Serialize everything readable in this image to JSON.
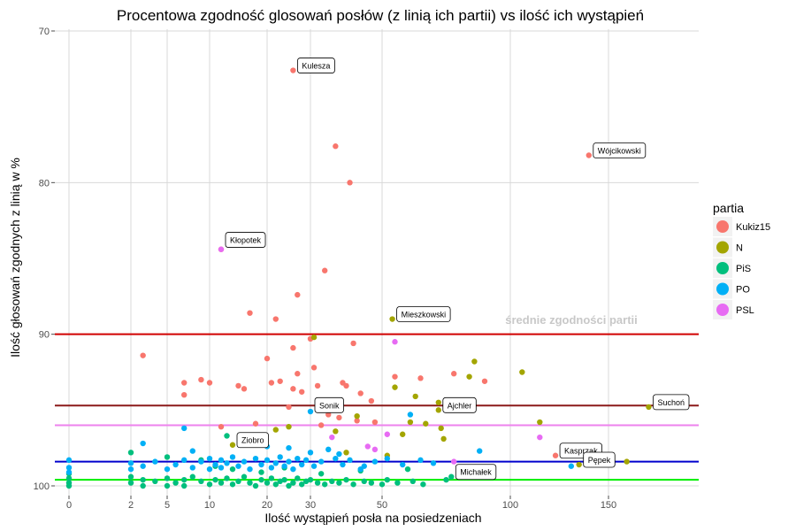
{
  "chart_data": {
    "type": "scatter",
    "title": "Procentowa zgodność glosowań posłów (z linią ich partii) vs ilość ich wystąpień",
    "xlabel": "Ilość wystąpień posła na posiedzeniach",
    "ylabel": "Ilość głosowań zgodnych z linią w %",
    "x_ticks": [
      0,
      2,
      5,
      10,
      20,
      30,
      50,
      100,
      150
    ],
    "y_ticks": [
      70,
      80,
      90,
      100
    ],
    "ylim": [
      69,
      101
    ],
    "y_reversed": true,
    "grid": true,
    "legend": {
      "title": "partia",
      "position": "right",
      "entries": [
        "Kukiz15",
        "N",
        "PiS",
        "PO",
        "PSL"
      ]
    },
    "colors": {
      "Kukiz15": "#F8766D",
      "N": "#A3A500",
      "PiS": "#00BF7D",
      "PO": "#00B0F6",
      "PSL": "#E76BF3"
    },
    "annotation_text": "średnie zgodności partii",
    "hlines": [
      {
        "value": 90.0,
        "color": "#D00000"
      },
      {
        "value": 94.7,
        "color": "#8B1A1A"
      },
      {
        "value": 96.0,
        "color": "#EE82EE"
      },
      {
        "value": 98.4,
        "color": "#0000CD"
      },
      {
        "value": 99.6,
        "color": "#00EE00"
      }
    ],
    "labels": [
      {
        "text": "Kulesza",
        "x": 26,
        "y": 72.6
      },
      {
        "text": "Wójcikowski",
        "x": 140,
        "y": 78.2
      },
      {
        "text": "Kłopotek",
        "x": 12,
        "y": 84.1
      },
      {
        "text": "Mieszkowski",
        "x": 54,
        "y": 89.0
      },
      {
        "text": "Sonik",
        "x": 30,
        "y": 95.0
      },
      {
        "text": "Ajchler",
        "x": 72,
        "y": 95.0
      },
      {
        "text": "Suchoń",
        "x": 172,
        "y": 94.8
      },
      {
        "text": "Ziobro",
        "x": 14,
        "y": 97.3
      },
      {
        "text": "Kasprzak",
        "x": 123,
        "y": 98.0
      },
      {
        "text": "Pępek",
        "x": 135,
        "y": 98.6
      },
      {
        "text": "Michałek",
        "x": 77,
        "y": 99.4
      }
    ],
    "series": [
      {
        "name": "Kukiz15",
        "points": [
          [
            26,
            72.6
          ],
          [
            37,
            77.6
          ],
          [
            41,
            80.0
          ],
          [
            34,
            85.8
          ],
          [
            27,
            87.4
          ],
          [
            12,
            84.4
          ],
          [
            17,
            88.6
          ],
          [
            22,
            89.0
          ],
          [
            30,
            90.3
          ],
          [
            42,
            90.6
          ],
          [
            3,
            91.4
          ],
          [
            20,
            91.6
          ],
          [
            26,
            90.9
          ],
          [
            27,
            92.6
          ],
          [
            31,
            92.2
          ],
          [
            7,
            93.2
          ],
          [
            9,
            93.0
          ],
          [
            10,
            93.2
          ],
          [
            15,
            93.4
          ],
          [
            16,
            93.6
          ],
          [
            21,
            93.2
          ],
          [
            23,
            93.1
          ],
          [
            26,
            93.6
          ],
          [
            28,
            93.8
          ],
          [
            32,
            93.4
          ],
          [
            39,
            93.2
          ],
          [
            40,
            93.4
          ],
          [
            44,
            93.9
          ],
          [
            47,
            94.4
          ],
          [
            55,
            92.8
          ],
          [
            65,
            92.9
          ],
          [
            78,
            92.6
          ],
          [
            90,
            93.1
          ],
          [
            7,
            94.0
          ],
          [
            25,
            94.8
          ],
          [
            35,
            95.3
          ],
          [
            43,
            95.7
          ],
          [
            12,
            96.1
          ],
          [
            18,
            95.9
          ],
          [
            33,
            96.0
          ],
          [
            38,
            95.5
          ],
          [
            48,
            95.8
          ],
          [
            123,
            98.0
          ],
          [
            140,
            78.2
          ]
        ]
      },
      {
        "name": "N",
        "points": [
          [
            31,
            90.2
          ],
          [
            54,
            89.0
          ],
          [
            55,
            93.5
          ],
          [
            63,
            94.1
          ],
          [
            72,
            94.5
          ],
          [
            86,
            91.8
          ],
          [
            84,
            92.8
          ],
          [
            106,
            92.5
          ],
          [
            61,
            95.8
          ],
          [
            73,
            96.2
          ],
          [
            74,
            96.9
          ],
          [
            37,
            96.4
          ],
          [
            43,
            95.4
          ],
          [
            58,
            96.6
          ],
          [
            67,
            95.9
          ],
          [
            14,
            97.3
          ],
          [
            22,
            96.3
          ],
          [
            25,
            96.1
          ],
          [
            72,
            95.0
          ],
          [
            115,
            95.8
          ],
          [
            135,
            98.6
          ],
          [
            160,
            98.4
          ],
          [
            172,
            94.8
          ],
          [
            52,
            98.0
          ],
          [
            40,
            97.8
          ]
        ]
      },
      {
        "name": "PiS",
        "points": [
          [
            0,
            99.5
          ],
          [
            0,
            99.8
          ],
          [
            0,
            100.0
          ],
          [
            0,
            99.2
          ],
          [
            2,
            99.4
          ],
          [
            2,
            99.8
          ],
          [
            3,
            99.6
          ],
          [
            3,
            100.0
          ],
          [
            4,
            99.7
          ],
          [
            5,
            99.5
          ],
          [
            5,
            100.0
          ],
          [
            6,
            99.8
          ],
          [
            7,
            99.6
          ],
          [
            7,
            100.0
          ],
          [
            8,
            99.4
          ],
          [
            9,
            99.7
          ],
          [
            10,
            99.9
          ],
          [
            11,
            99.6
          ],
          [
            12,
            99.8
          ],
          [
            13,
            99.5
          ],
          [
            14,
            99.9
          ],
          [
            15,
            99.7
          ],
          [
            16,
            99.4
          ],
          [
            17,
            99.8
          ],
          [
            18,
            100.0
          ],
          [
            19,
            99.6
          ],
          [
            20,
            99.8
          ],
          [
            21,
            99.5
          ],
          [
            22,
            99.9
          ],
          [
            23,
            99.7
          ],
          [
            24,
            99.6
          ],
          [
            25,
            100.0
          ],
          [
            26,
            99.8
          ],
          [
            27,
            99.5
          ],
          [
            28,
            99.9
          ],
          [
            29,
            99.7
          ],
          [
            30,
            99.6
          ],
          [
            32,
            99.8
          ],
          [
            34,
            99.9
          ],
          [
            36,
            99.7
          ],
          [
            38,
            99.8
          ],
          [
            40,
            99.6
          ],
          [
            42,
            99.9
          ],
          [
            45,
            99.7
          ],
          [
            47,
            99.8
          ],
          [
            50,
            99.9
          ],
          [
            52,
            99.6
          ],
          [
            56,
            99.8
          ],
          [
            62,
            99.7
          ],
          [
            66,
            99.9
          ],
          [
            75,
            99.6
          ],
          [
            77,
            99.4
          ],
          [
            2,
            97.8
          ],
          [
            5,
            98.1
          ],
          [
            9,
            98.3
          ],
          [
            13,
            96.7
          ],
          [
            16,
            97.0
          ],
          [
            11,
            98.7
          ],
          [
            14,
            98.9
          ],
          [
            19,
            99.1
          ],
          [
            24,
            98.8
          ],
          [
            33,
            99.2
          ],
          [
            44,
            99.0
          ],
          [
            60,
            98.9
          ]
        ]
      },
      {
        "name": "PO",
        "points": [
          [
            0,
            98.3
          ],
          [
            0,
            98.8
          ],
          [
            0,
            99.1
          ],
          [
            2,
            98.5
          ],
          [
            2,
            98.9
          ],
          [
            3,
            97.2
          ],
          [
            3,
            98.7
          ],
          [
            4,
            98.4
          ],
          [
            5,
            98.9
          ],
          [
            6,
            98.6
          ],
          [
            7,
            96.2
          ],
          [
            7,
            98.3
          ],
          [
            8,
            97.7
          ],
          [
            8,
            98.8
          ],
          [
            9,
            98.4
          ],
          [
            10,
            98.2
          ],
          [
            10,
            98.9
          ],
          [
            11,
            98.6
          ],
          [
            12,
            98.3
          ],
          [
            12,
            98.8
          ],
          [
            13,
            98.5
          ],
          [
            14,
            98.1
          ],
          [
            15,
            98.7
          ],
          [
            16,
            98.4
          ],
          [
            17,
            98.9
          ],
          [
            18,
            98.2
          ],
          [
            19,
            98.6
          ],
          [
            20,
            98.3
          ],
          [
            21,
            98.8
          ],
          [
            22,
            98.5
          ],
          [
            23,
            98.1
          ],
          [
            24,
            98.7
          ],
          [
            25,
            98.4
          ],
          [
            26,
            98.9
          ],
          [
            27,
            98.2
          ],
          [
            28,
            98.6
          ],
          [
            29,
            98.3
          ],
          [
            30,
            97.8
          ],
          [
            31,
            98.7
          ],
          [
            33,
            98.4
          ],
          [
            35,
            97.6
          ],
          [
            37,
            98.2
          ],
          [
            39,
            98.6
          ],
          [
            41,
            98.3
          ],
          [
            45,
            98.7
          ],
          [
            48,
            98.4
          ],
          [
            52,
            98.2
          ],
          [
            58,
            98.6
          ],
          [
            65,
            98.3
          ],
          [
            70,
            98.5
          ],
          [
            88,
            97.7
          ],
          [
            30,
            95.1
          ],
          [
            61,
            95.3
          ],
          [
            131,
            98.7
          ],
          [
            25,
            97.5
          ],
          [
            38,
            97.9
          ],
          [
            44,
            98.9
          ],
          [
            20,
            97.4
          ]
        ]
      },
      {
        "name": "PSL",
        "points": [
          [
            12,
            84.4
          ],
          [
            55,
            90.5
          ],
          [
            36,
            96.8
          ],
          [
            46,
            97.4
          ],
          [
            48,
            97.6
          ],
          [
            52,
            96.6
          ],
          [
            78,
            98.4
          ],
          [
            115,
            96.8
          ]
        ]
      }
    ]
  }
}
